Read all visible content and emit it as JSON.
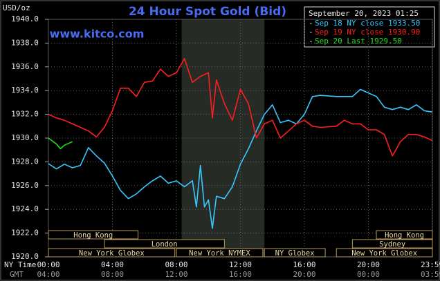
{
  "chart_data": {
    "type": "line",
    "title": "24 Hour Spot Gold (Bid)",
    "site": "www.kitco.com",
    "unit_label": "USD/oz",
    "timestamp": "September 20, 2023 01:25",
    "x_axis_label": "NY Time",
    "x2_axis_label": "GMT",
    "xlim": [
      0,
      24
    ],
    "xticks": [
      {
        "value": 0,
        "label": "00:00"
      },
      {
        "value": 4,
        "label": "04:00"
      },
      {
        "value": 8,
        "label": "08:00"
      },
      {
        "value": 12,
        "label": "12:00"
      },
      {
        "value": 16,
        "label": "16:00"
      },
      {
        "value": 20,
        "label": "20:00"
      },
      {
        "value": 23.98,
        "label": "23:59"
      }
    ],
    "x2ticklabels": [
      "04:00",
      "08:00",
      "12:00",
      "16:00",
      "20:00",
      "00:00",
      "03:59"
    ],
    "ylim": [
      1920,
      1940
    ],
    "yticks": [
      {
        "value": 1920,
        "label": "1920.0"
      },
      {
        "value": 1922,
        "label": "1922.0"
      },
      {
        "value": 1924,
        "label": "1924.0"
      },
      {
        "value": 1926,
        "label": "1926.0"
      },
      {
        "value": 1928,
        "label": "1928.0"
      },
      {
        "value": 1930,
        "label": "1930.0"
      },
      {
        "value": 1932,
        "label": "1932.0"
      },
      {
        "value": 1934,
        "label": "1934.0"
      },
      {
        "value": 1936,
        "label": "1936.0"
      },
      {
        "value": 1938,
        "label": "1938.0"
      },
      {
        "value": 1940,
        "label": "1940.0"
      }
    ],
    "grid": true,
    "highlight": {
      "start": 8.33,
      "end": 13.5,
      "color": "#262b26"
    },
    "sessions": [
      {
        "label": "Hong Kong",
        "start": 0,
        "end": 5.6
      },
      {
        "label": "Hong Kong",
        "start": 20.5,
        "end": 24
      },
      {
        "label": "London",
        "start": 3.5,
        "end": 11
      },
      {
        "label": "Sydney",
        "start": 19,
        "end": 24
      },
      {
        "label": "New York Globex",
        "start": 0,
        "end": 7.9
      },
      {
        "label": "New York NYMEX",
        "start": 8,
        "end": 13.4
      },
      {
        "label": "NY Globex",
        "start": 13.5,
        "end": 17.3
      },
      {
        "label": "New York Globex",
        "start": 18,
        "end": 24
      }
    ],
    "series": [
      {
        "name": "Sep 18 NY close 1933.50",
        "color": "#38c8ff",
        "x": [
          0,
          0.5,
          1,
          1.5,
          2,
          2.5,
          3,
          3.5,
          4,
          4.5,
          5,
          5.5,
          6,
          6.5,
          7,
          7.5,
          8,
          8.5,
          9,
          9.25,
          9.5,
          9.75,
          10,
          10.25,
          10.5,
          11,
          11.5,
          12,
          12.5,
          13,
          13.5,
          14,
          14.5,
          15,
          15.5,
          16,
          16.5,
          17,
          18,
          19,
          19.5,
          20,
          20.5,
          21,
          21.5,
          22,
          22.5,
          23,
          23.5,
          23.98
        ],
        "values": [
          1927.85,
          1927.4,
          1927.8,
          1927.5,
          1927.7,
          1929.2,
          1928.5,
          1927.9,
          1926.8,
          1925.6,
          1924.9,
          1925.3,
          1925.9,
          1926.4,
          1926.8,
          1926.2,
          1926.4,
          1925.9,
          1926.4,
          1924.2,
          1927.7,
          1924.2,
          1924.8,
          1922.4,
          1925.1,
          1924.9,
          1925.9,
          1927.8,
          1929.1,
          1930.6,
          1932.0,
          1932.8,
          1931.3,
          1931.5,
          1931.2,
          1932.0,
          1933.5,
          1933.6,
          1933.5,
          1933.5,
          1934.1,
          1933.8,
          1933.5,
          1932.6,
          1932.4,
          1932.6,
          1932.4,
          1932.8,
          1932.3,
          1932.2
        ]
      },
      {
        "name": "Sep 19 NY close 1930.90",
        "color": "#ff1e1e",
        "x": [
          0,
          0.5,
          1,
          1.5,
          2,
          2.5,
          3,
          3.5,
          4,
          4.5,
          5,
          5.5,
          6,
          6.5,
          7,
          7.5,
          8,
          8.5,
          9,
          9.5,
          10,
          10.25,
          10.5,
          11,
          11.5,
          12,
          12.5,
          13,
          13.5,
          14,
          14.5,
          15,
          15.5,
          16,
          16.5,
          17,
          18,
          18.5,
          19,
          19.5,
          20,
          20.5,
          21,
          21.5,
          22,
          22.5,
          23,
          23.5,
          23.98
        ],
        "values": [
          1932.0,
          1931.7,
          1931.5,
          1931.2,
          1930.9,
          1930.6,
          1930.1,
          1930.9,
          1932.3,
          1934.2,
          1934.2,
          1933.5,
          1934.7,
          1934.8,
          1935.8,
          1935.2,
          1935.5,
          1936.7,
          1934.7,
          1935.2,
          1935.5,
          1931.7,
          1934.9,
          1932.9,
          1931.5,
          1934.1,
          1932.9,
          1930.0,
          1931.2,
          1931.5,
          1930.0,
          1930.6,
          1931.2,
          1931.5,
          1931.0,
          1930.9,
          1931.0,
          1931.5,
          1931.2,
          1931.2,
          1930.7,
          1930.7,
          1930.3,
          1928.5,
          1929.7,
          1930.3,
          1930.3,
          1930.1,
          1929.8
        ]
      },
      {
        "name": "Sep 20 Last 1929.50",
        "color": "#22e022",
        "x": [
          0,
          0.5,
          0.75,
          1,
          1.5
        ],
        "values": [
          1930.0,
          1929.5,
          1929.1,
          1929.4,
          1929.7
        ]
      }
    ]
  }
}
